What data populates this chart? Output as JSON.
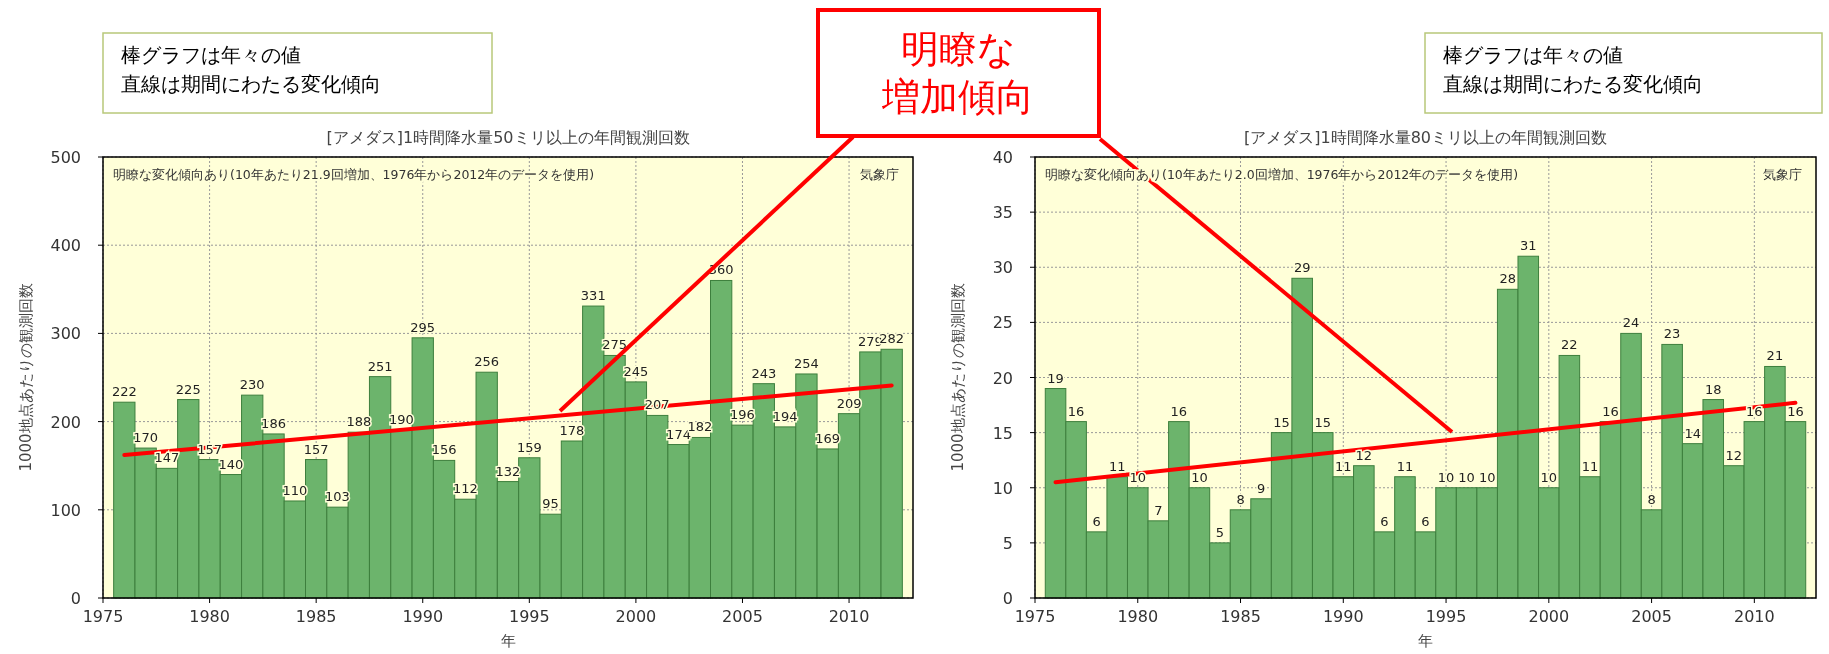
{
  "chart_data": [
    {
      "type": "bar",
      "title": "[アメダス]1時間降水量50ミリ以上の年間観測回数",
      "xlabel": "年",
      "ylabel": "1000地点あたりの観測回数",
      "annotations": [
        "棒グラフは年々の値直線は期間にわたる変化傾向",
        "明瞭な変化傾向あり(10年あたり21.9回増加、1976年から2012年のデータを使用)",
        "気象庁"
      ],
      "x": [
        1976,
        1977,
        1978,
        1979,
        1980,
        1981,
        1982,
        1983,
        1984,
        1985,
        1986,
        1987,
        1988,
        1989,
        1990,
        1991,
        1992,
        1993,
        1994,
        1995,
        1996,
        1997,
        1998,
        1999,
        2000,
        2001,
        2002,
        2003,
        2004,
        2005,
        2006,
        2007,
        2008,
        2009,
        2010,
        2011,
        2012
      ],
      "series": [
        {
          "type": "bar",
          "color": "#6cb46c",
          "values": [
            222,
            170,
            147,
            225,
            157,
            140,
            230,
            186,
            110,
            157,
            103,
            188,
            251,
            190,
            295,
            156,
            112,
            256,
            132,
            159,
            95,
            178,
            331,
            275,
            245,
            207,
            174,
            182,
            360,
            196,
            243,
            194,
            254,
            169,
            209,
            279,
            282
          ],
          "value_labels": [
            "222",
            "170",
            "147",
            "225",
            "157",
            "140",
            "230",
            "186",
            "110",
            "157",
            "103",
            "188",
            "251",
            "190",
            "295",
            "156",
            "112",
            "256",
            "132",
            "159",
            "95",
            "178",
            "331",
            "275",
            "245",
            "207",
            "174",
            "182",
            "360",
            "196",
            "243",
            "194",
            "254",
            "169",
            "209",
            "279",
            "282"
          ]
        },
        {
          "type": "line",
          "color": "#ff0000",
          "values": [
            162,
            null,
            null,
            null,
            null,
            null,
            null,
            null,
            null,
            null,
            null,
            null,
            null,
            null,
            null,
            null,
            null,
            null,
            null,
            null,
            null,
            null,
            null,
            null,
            null,
            null,
            null,
            null,
            null,
            null,
            null,
            null,
            null,
            null,
            null,
            null,
            241
          ]
        }
      ],
      "xlim": [
        1975,
        2013
      ],
      "xticks": [
        1975,
        1980,
        1985,
        1990,
        1995,
        2000,
        2005,
        2010
      ],
      "ylim": [
        0,
        500
      ],
      "yticks": [
        0,
        100,
        200,
        300,
        400,
        500
      ],
      "grid": true
    },
    {
      "type": "bar",
      "title": "[アメダス]1時間降水量80ミリ以上の年間観測回数",
      "xlabel": "年",
      "ylabel": "1000地点あたりの観測回数",
      "annotations": [
        "棒グラフは年々の値直線は期間にわたる変化傾向",
        "明瞭な変化傾向あり(10年あたり2.0回増加、1976年から2012年のデータを使用)",
        "気象庁"
      ],
      "x": [
        1976,
        1977,
        1978,
        1979,
        1980,
        1981,
        1982,
        1983,
        1984,
        1985,
        1986,
        1987,
        1988,
        1989,
        1990,
        1991,
        1992,
        1993,
        1994,
        1995,
        1996,
        1997,
        1998,
        1999,
        2000,
        2001,
        2002,
        2003,
        2004,
        2005,
        2006,
        2007,
        2008,
        2009,
        2010,
        2011,
        2012
      ],
      "series": [
        {
          "type": "bar",
          "color": "#6cb46c",
          "values": [
            19,
            16,
            6,
            11,
            10,
            7,
            16,
            10,
            5,
            8,
            9,
            15,
            29,
            15,
            11,
            12,
            6,
            11,
            6,
            10,
            10,
            10,
            28,
            31,
            10,
            22,
            11,
            16,
            24,
            8,
            23,
            14,
            18,
            12,
            16,
            21,
            16
          ],
          "value_labels": [
            "19",
            "16",
            "6",
            "11",
            "10",
            "7",
            "16",
            "10",
            "5",
            "8",
            "9",
            "15",
            "29",
            "15",
            "11",
            "12",
            "6",
            "11",
            "6",
            "10",
            "10",
            "10",
            "28",
            "31",
            "10",
            "22",
            "11",
            "16",
            "24",
            "8",
            "23",
            "14",
            "18",
            "12",
            "16",
            "21",
            "16"
          ]
        },
        {
          "type": "line",
          "color": "#ff0000",
          "values": [
            10.5,
            null,
            null,
            null,
            null,
            null,
            null,
            null,
            null,
            null,
            null,
            null,
            null,
            null,
            null,
            null,
            null,
            null,
            null,
            null,
            null,
            null,
            null,
            null,
            null,
            null,
            null,
            null,
            null,
            null,
            null,
            null,
            null,
            null,
            null,
            null,
            17.7
          ]
        }
      ],
      "xlim": [
        1975,
        2013
      ],
      "xticks": [
        1975,
        1980,
        1985,
        1990,
        1995,
        2000,
        2005,
        2010
      ],
      "ylim": [
        0,
        40
      ],
      "yticks": [
        0,
        5,
        10,
        15,
        20,
        25,
        30,
        35,
        40
      ],
      "grid": true
    },
    {
      "type": "other",
      "annotations": [
        "明瞭な増加傾向"
      ]
    }
  ]
}
